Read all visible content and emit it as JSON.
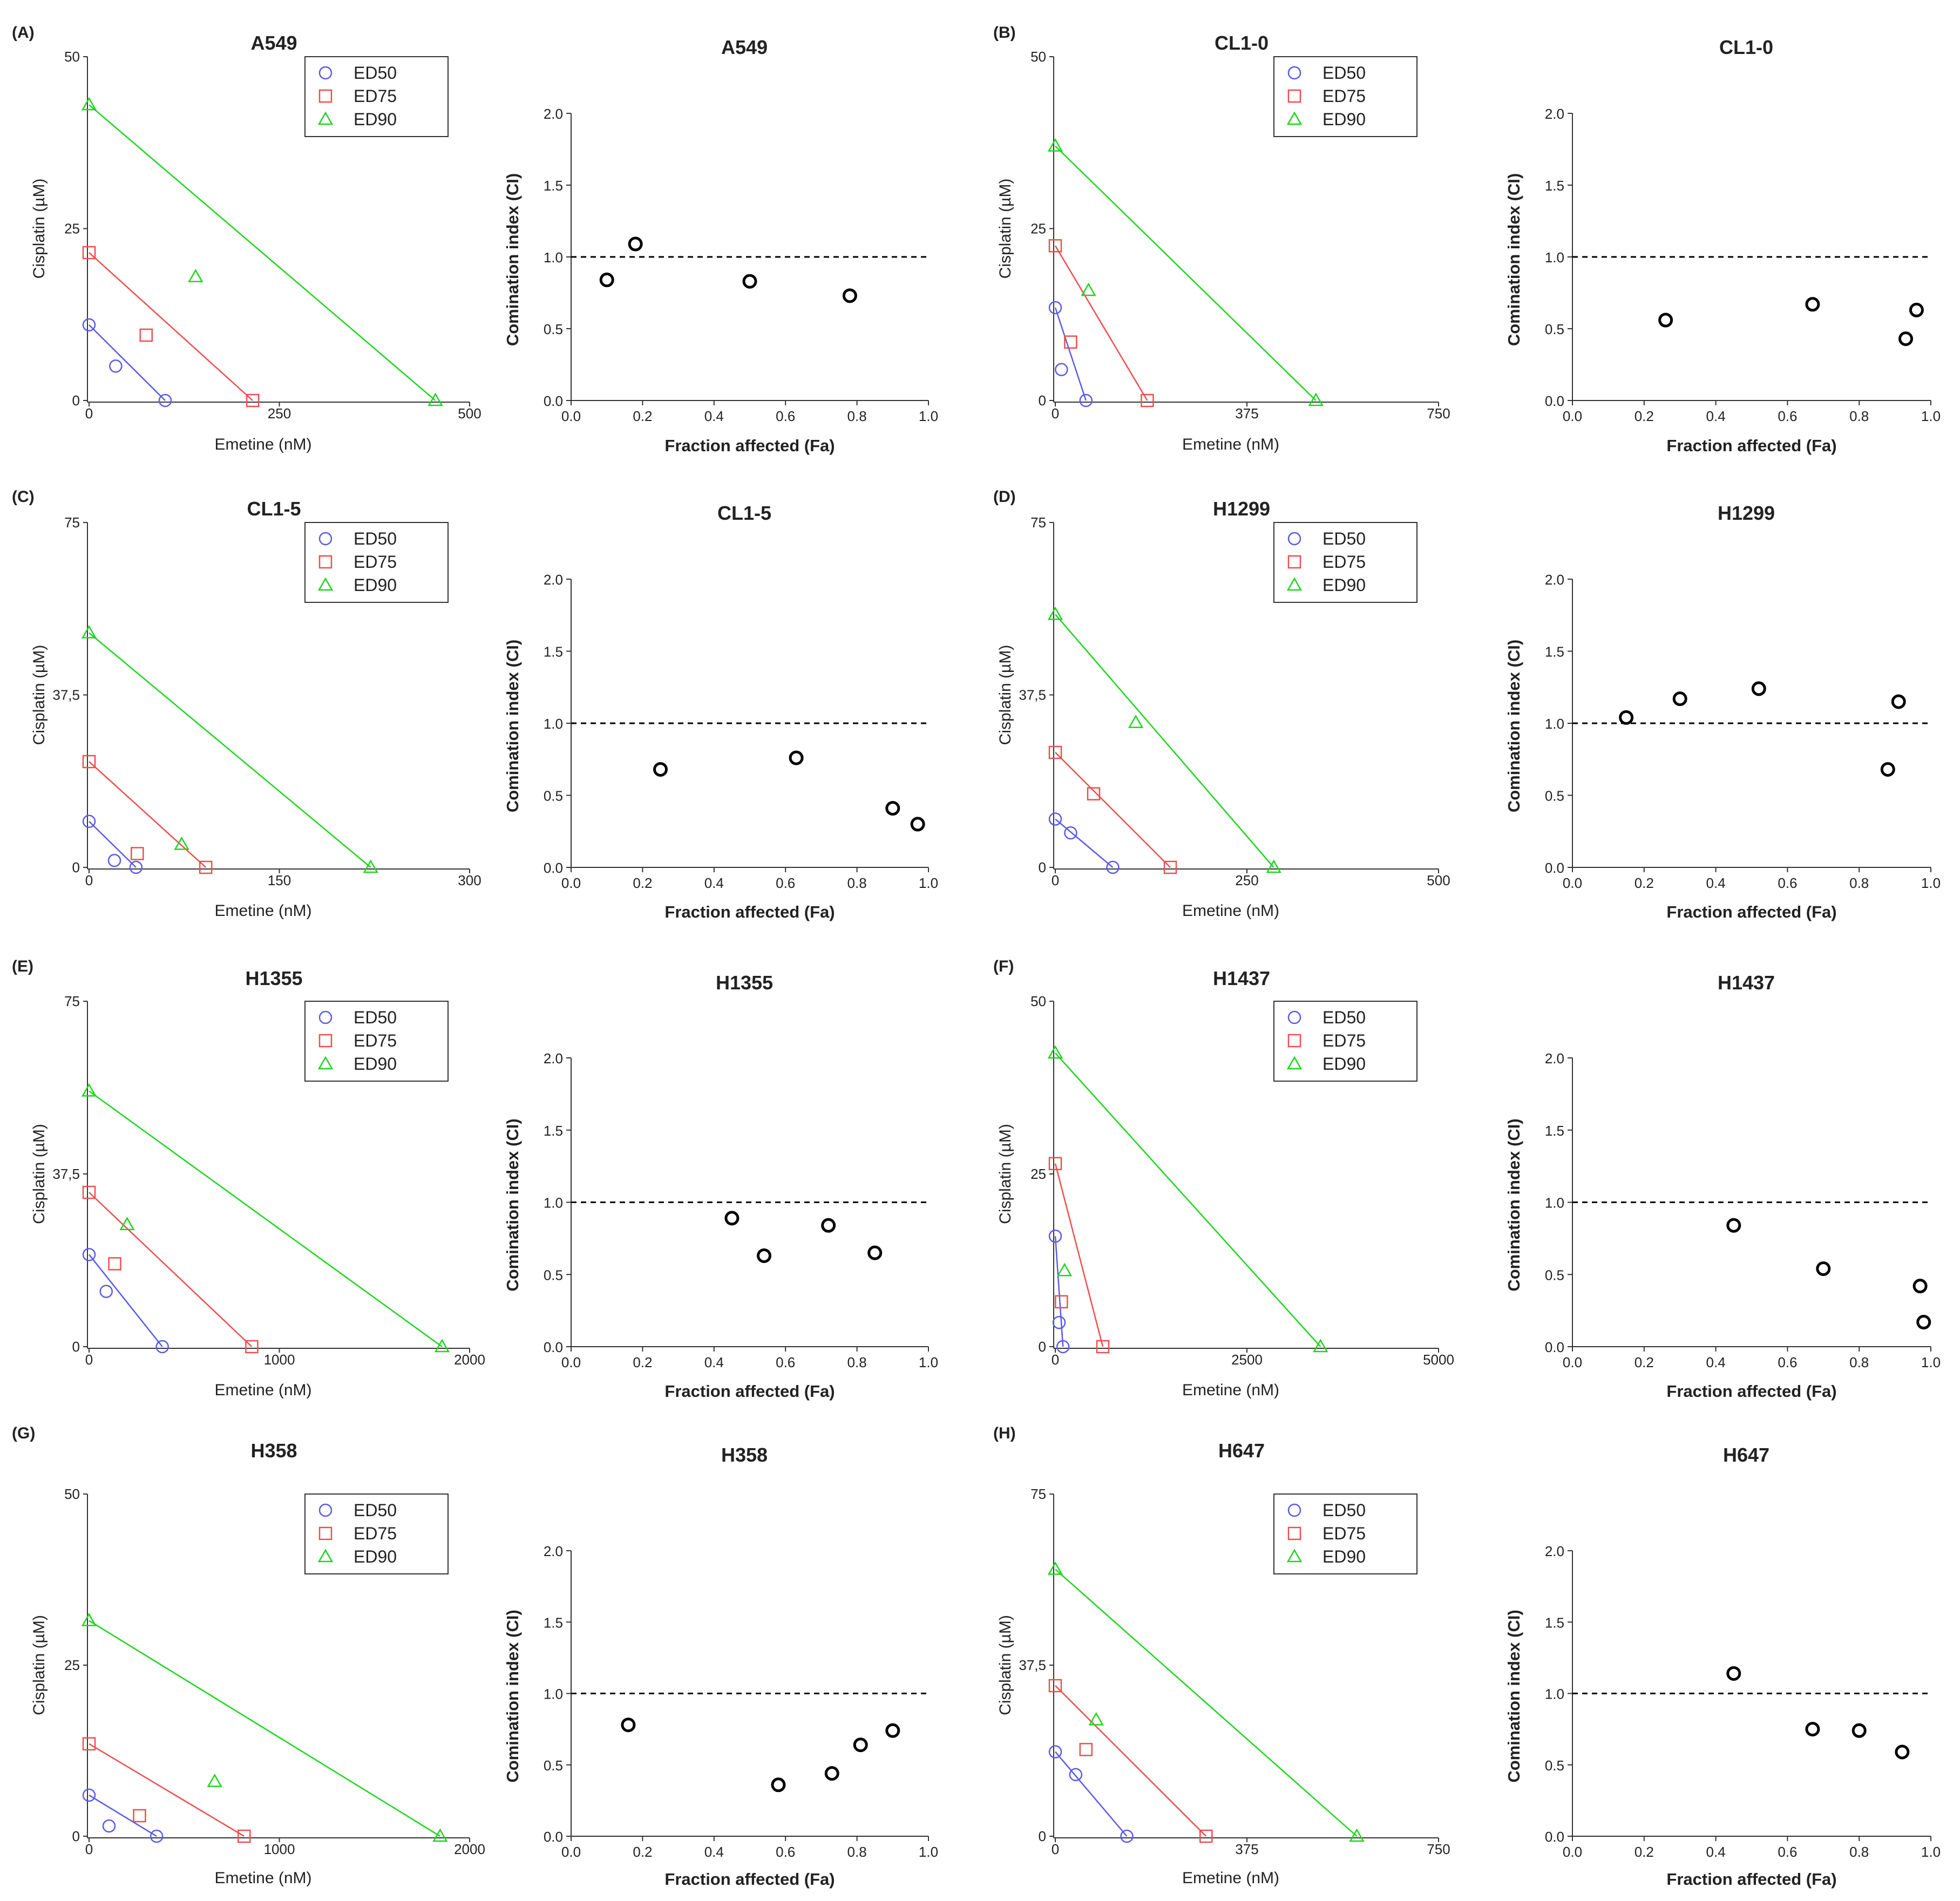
{
  "figure": {
    "background": "#ffffff"
  },
  "colors": {
    "ed50": "#5a5ae6",
    "ed75": "#ee4d4d",
    "ed90": "#1ed41e",
    "ci": "#000000",
    "axis": "#333333"
  },
  "legend_labels": [
    "ED50",
    "ED75",
    "ED90"
  ],
  "chart_data": [
    {
      "panel": "(A)",
      "type": "scatter",
      "kind": "isobologram",
      "title": "A549",
      "xlabel": "Emetine (nM)",
      "ylabel": "Cisplatin (µM)",
      "xlim": [
        0,
        500
      ],
      "ylim": [
        0,
        50
      ],
      "xticks": [
        0,
        250,
        500
      ],
      "xtick_labels": [
        "0",
        "250",
        "500"
      ],
      "yticks": [
        0,
        25,
        50
      ],
      "ytick_labels": [
        "0",
        "25",
        "50"
      ],
      "legend": "top-right",
      "series": [
        {
          "name": "ED50",
          "marker": "circle",
          "intercept_y": 11,
          "intercept_x": 100,
          "points": [
            [
              35,
              5
            ]
          ]
        },
        {
          "name": "ED75",
          "marker": "square",
          "intercept_y": 21.5,
          "intercept_x": 215,
          "points": [
            [
              75,
              9.5
            ]
          ]
        },
        {
          "name": "ED90",
          "marker": "triangle",
          "intercept_y": 43,
          "intercept_x": 455,
          "points": [
            [
              140,
              18
            ]
          ]
        }
      ]
    },
    {
      "panel": "",
      "type": "scatter",
      "kind": "ci",
      "title": "A549",
      "xlabel": "Fraction affected (Fa)",
      "ylabel": "Comination index (CI)",
      "xlim": [
        0,
        1
      ],
      "ylim": [
        0,
        2
      ],
      "xticks": [
        0,
        0.2,
        0.4,
        0.6,
        0.8,
        1.0
      ],
      "xtick_labels": [
        "0.0",
        "0.2",
        "0.4",
        "0.6",
        "0.8",
        "1.0"
      ],
      "yticks": [
        0,
        0.5,
        1.0,
        1.5,
        2.0
      ],
      "ytick_labels": [
        "0.0",
        "0.5",
        "1.0",
        "1.5",
        "2.0"
      ],
      "reference_line": 1.0,
      "x": [
        0.1,
        0.18,
        0.5,
        0.78
      ],
      "y": [
        0.84,
        1.09,
        0.83,
        0.73
      ]
    },
    {
      "panel": "(B)",
      "type": "scatter",
      "kind": "isobologram",
      "title": "CL1-0",
      "xlabel": "Emetine (nM)",
      "ylabel": "Cisplatin (µM)",
      "xlim": [
        0,
        750
      ],
      "ylim": [
        0,
        50
      ],
      "xticks": [
        0,
        375,
        750
      ],
      "xtick_labels": [
        "0",
        "375",
        "750"
      ],
      "yticks": [
        0,
        25,
        50
      ],
      "ytick_labels": [
        "0",
        "25",
        "50"
      ],
      "legend": "top-right",
      "series": [
        {
          "name": "ED50",
          "marker": "circle",
          "intercept_y": 13.5,
          "intercept_x": 60,
          "points": [
            [
              12,
              4.5
            ]
          ]
        },
        {
          "name": "ED75",
          "marker": "square",
          "intercept_y": 22.5,
          "intercept_x": 180,
          "points": [
            [
              30,
              8.5
            ]
          ]
        },
        {
          "name": "ED90",
          "marker": "triangle",
          "intercept_y": 37,
          "intercept_x": 510,
          "points": [
            [
              65,
              16
            ]
          ]
        }
      ]
    },
    {
      "panel": "",
      "type": "scatter",
      "kind": "ci",
      "title": "CL1-0",
      "xlabel": "Fraction affected (Fa)",
      "ylabel": "Comination index (CI)",
      "xlim": [
        0,
        1
      ],
      "ylim": [
        0,
        2
      ],
      "xticks": [
        0,
        0.2,
        0.4,
        0.6,
        0.8,
        1.0
      ],
      "xtick_labels": [
        "0.0",
        "0.2",
        "0.4",
        "0.6",
        "0.8",
        "1.0"
      ],
      "yticks": [
        0,
        0.5,
        1.0,
        1.5,
        2.0
      ],
      "ytick_labels": [
        "0.0",
        "0.5",
        "1.0",
        "1.5",
        "2.0"
      ],
      "reference_line": 1.0,
      "x": [
        0.26,
        0.67,
        0.93,
        0.96
      ],
      "y": [
        0.56,
        0.67,
        0.43,
        0.63
      ]
    },
    {
      "panel": "(C)",
      "type": "scatter",
      "kind": "isobologram",
      "title": "CL1-5",
      "xlabel": "Emetine (nM)",
      "ylabel": "Cisplatin (µM)",
      "xlim": [
        0,
        300
      ],
      "ylim": [
        0,
        75
      ],
      "xticks": [
        0,
        150,
        300
      ],
      "xtick_labels": [
        "0",
        "150",
        "300"
      ],
      "yticks": [
        0,
        37.5,
        75
      ],
      "ytick_labels": [
        "0",
        "37,5",
        "75"
      ],
      "legend": "top-right",
      "series": [
        {
          "name": "ED50",
          "marker": "circle",
          "intercept_y": 10,
          "intercept_x": 37,
          "points": [
            [
              20,
              1.5
            ]
          ]
        },
        {
          "name": "ED75",
          "marker": "square",
          "intercept_y": 23,
          "intercept_x": 92,
          "points": [
            [
              38,
              3
            ]
          ]
        },
        {
          "name": "ED90",
          "marker": "triangle",
          "intercept_y": 51,
          "intercept_x": 222,
          "points": [
            [
              73,
              5
            ]
          ]
        }
      ]
    },
    {
      "panel": "",
      "type": "scatter",
      "kind": "ci",
      "title": "CL1-5",
      "xlabel": "Fraction affected (Fa)",
      "ylabel": "Comination index (CI)",
      "xlim": [
        0,
        1
      ],
      "ylim": [
        0,
        2
      ],
      "xticks": [
        0,
        0.2,
        0.4,
        0.6,
        0.8,
        1.0
      ],
      "xtick_labels": [
        "0.0",
        "0.2",
        "0.4",
        "0.6",
        "0.8",
        "1.0"
      ],
      "yticks": [
        0,
        0.5,
        1.0,
        1.5,
        2.0
      ],
      "ytick_labels": [
        "0.0",
        "0.5",
        "1.0",
        "1.5",
        "2.0"
      ],
      "reference_line": 1.0,
      "x": [
        0.25,
        0.63,
        0.9,
        0.97
      ],
      "y": [
        0.68,
        0.76,
        0.41,
        0.3
      ]
    },
    {
      "panel": "(D)",
      "type": "scatter",
      "kind": "isobologram",
      "title": "H1299",
      "xlabel": "Emetine (nM)",
      "ylabel": "Cisplatin (µM)",
      "xlim": [
        0,
        500
      ],
      "ylim": [
        0,
        75
      ],
      "xticks": [
        0,
        250,
        500
      ],
      "xtick_labels": [
        "0",
        "250",
        "500"
      ],
      "yticks": [
        0,
        37.5,
        75
      ],
      "ytick_labels": [
        "0",
        "37,5",
        "75"
      ],
      "legend": "top-right",
      "series": [
        {
          "name": "ED50",
          "marker": "circle",
          "intercept_y": 10.5,
          "intercept_x": 75,
          "points": [
            [
              20,
              7.5
            ]
          ]
        },
        {
          "name": "ED75",
          "marker": "square",
          "intercept_y": 25,
          "intercept_x": 150,
          "points": [
            [
              50,
              16
            ]
          ]
        },
        {
          "name": "ED90",
          "marker": "triangle",
          "intercept_y": 55,
          "intercept_x": 285,
          "points": [
            [
              105,
              31.5
            ]
          ]
        }
      ]
    },
    {
      "panel": "",
      "type": "scatter",
      "kind": "ci",
      "title": "H1299",
      "xlabel": "Fraction affected (Fa)",
      "ylabel": "Comination index (CI)",
      "xlim": [
        0,
        1
      ],
      "ylim": [
        0,
        2
      ],
      "xticks": [
        0,
        0.2,
        0.4,
        0.6,
        0.8,
        1.0
      ],
      "xtick_labels": [
        "0.0",
        "0.2",
        "0.4",
        "0.6",
        "0.8",
        "1.0"
      ],
      "yticks": [
        0,
        0.5,
        1.0,
        1.5,
        2.0
      ],
      "ytick_labels": [
        "0.0",
        "0.5",
        "1.0",
        "1.5",
        "2.0"
      ],
      "reference_line": 1.0,
      "x": [
        0.15,
        0.3,
        0.52,
        0.88,
        0.91
      ],
      "y": [
        1.04,
        1.17,
        1.24,
        0.68,
        1.15
      ]
    },
    {
      "panel": "(E)",
      "type": "scatter",
      "kind": "isobologram",
      "title": "H1355",
      "xlabel": "Emetine (nM)",
      "ylabel": "Cisplatin (µM)",
      "xlim": [
        0,
        2000
      ],
      "ylim": [
        0,
        75
      ],
      "xticks": [
        0,
        1000,
        2000
      ],
      "xtick_labels": [
        "0",
        "1000",
        "2000"
      ],
      "yticks": [
        0,
        37.5,
        75
      ],
      "ytick_labels": [
        "0",
        "37,5",
        "75"
      ],
      "legend": "top-right",
      "series": [
        {
          "name": "ED50",
          "marker": "circle",
          "intercept_y": 20,
          "intercept_x": 385,
          "points": [
            [
              90,
              12
            ]
          ]
        },
        {
          "name": "ED75",
          "marker": "square",
          "intercept_y": 33.5,
          "intercept_x": 855,
          "points": [
            [
              135,
              18
            ]
          ]
        },
        {
          "name": "ED90",
          "marker": "triangle",
          "intercept_y": 55.5,
          "intercept_x": 1855,
          "points": [
            [
              200,
              26.5
            ]
          ]
        }
      ]
    },
    {
      "panel": "",
      "type": "scatter",
      "kind": "ci",
      "title": "H1355",
      "xlabel": "Fraction affected (Fa)",
      "ylabel": "Comination index (CI)",
      "xlim": [
        0,
        1
      ],
      "ylim": [
        0,
        2
      ],
      "xticks": [
        0,
        0.2,
        0.4,
        0.6,
        0.8,
        1.0
      ],
      "xtick_labels": [
        "0.0",
        "0.2",
        "0.4",
        "0.6",
        "0.8",
        "1.0"
      ],
      "yticks": [
        0,
        0.5,
        1.0,
        1.5,
        2.0
      ],
      "ytick_labels": [
        "0.0",
        "0.5",
        "1.0",
        "1.5",
        "2.0"
      ],
      "reference_line": 1.0,
      "x": [
        0.45,
        0.54,
        0.72,
        0.85
      ],
      "y": [
        0.89,
        0.63,
        0.84,
        0.65
      ]
    },
    {
      "panel": "(F)",
      "type": "scatter",
      "kind": "isobologram",
      "title": "H1437",
      "xlabel": "Emetine (nM)",
      "ylabel": "Cisplatin (µM)",
      "xlim": [
        0,
        5000
      ],
      "ylim": [
        0,
        50
      ],
      "xticks": [
        0,
        2500,
        5000
      ],
      "xtick_labels": [
        "0",
        "2500",
        "5000"
      ],
      "yticks": [
        0,
        25,
        50
      ],
      "ytick_labels": [
        "0",
        "25",
        "50"
      ],
      "legend": "top-right",
      "series": [
        {
          "name": "ED50",
          "marker": "circle",
          "intercept_y": 16,
          "intercept_x": 100,
          "points": [
            [
              50,
              3.5
            ]
          ]
        },
        {
          "name": "ED75",
          "marker": "square",
          "intercept_y": 26.5,
          "intercept_x": 620,
          "points": [
            [
              80,
              6.5
            ]
          ]
        },
        {
          "name": "ED90",
          "marker": "triangle",
          "intercept_y": 42.5,
          "intercept_x": 3460,
          "points": [
            [
              120,
              11
            ]
          ]
        }
      ]
    },
    {
      "panel": "",
      "type": "scatter",
      "kind": "ci",
      "title": "H1437",
      "xlabel": "Fraction affected (Fa)",
      "ylabel": "Comination index (CI)",
      "xlim": [
        0,
        1
      ],
      "ylim": [
        0,
        2
      ],
      "xticks": [
        0,
        0.2,
        0.4,
        0.6,
        0.8,
        1.0
      ],
      "xtick_labels": [
        "0.0",
        "0.2",
        "0.4",
        "0.6",
        "0.8",
        "1.0"
      ],
      "yticks": [
        0,
        0.5,
        1.0,
        1.5,
        2.0
      ],
      "ytick_labels": [
        "0.0",
        "0.5",
        "1.0",
        "1.5",
        "2.0"
      ],
      "reference_line": 1.0,
      "x": [
        0.45,
        0.7,
        0.97,
        0.98
      ],
      "y": [
        0.84,
        0.54,
        0.42,
        0.17
      ]
    },
    {
      "panel": "(G)",
      "type": "scatter",
      "kind": "isobologram",
      "title": "H358",
      "xlabel": "Emetine (nM)",
      "ylabel": "Cisplatin (µM)",
      "xlim": [
        0,
        2000
      ],
      "ylim": [
        0,
        50
      ],
      "xticks": [
        0,
        1000,
        2000
      ],
      "xtick_labels": [
        "0",
        "1000",
        "2000"
      ],
      "yticks": [
        0,
        25,
        50
      ],
      "ytick_labels": [
        "0",
        "25",
        "50"
      ],
      "legend": "top-right",
      "series": [
        {
          "name": "ED50",
          "marker": "circle",
          "intercept_y": 6,
          "intercept_x": 355,
          "points": [
            [
              105,
              1.5
            ]
          ]
        },
        {
          "name": "ED75",
          "marker": "square",
          "intercept_y": 13.5,
          "intercept_x": 815,
          "points": [
            [
              265,
              3
            ]
          ]
        },
        {
          "name": "ED90",
          "marker": "triangle",
          "intercept_y": 31.5,
          "intercept_x": 1845,
          "points": [
            [
              660,
              8
            ]
          ]
        }
      ]
    },
    {
      "panel": "",
      "type": "scatter",
      "kind": "ci",
      "title": "H358",
      "xlabel": "Fraction affected (Fa)",
      "ylabel": "Comination index (CI)",
      "xlim": [
        0,
        1
      ],
      "ylim": [
        0,
        2
      ],
      "xticks": [
        0,
        0.2,
        0.4,
        0.6,
        0.8,
        1.0
      ],
      "xtick_labels": [
        "0.0",
        "0.2",
        "0.4",
        "0.6",
        "0.8",
        "1.0"
      ],
      "yticks": [
        0,
        0.5,
        1.0,
        1.5,
        2.0
      ],
      "ytick_labels": [
        "0.0",
        "0.5",
        "1.0",
        "1.5",
        "2.0"
      ],
      "reference_line": 1.0,
      "x": [
        0.16,
        0.58,
        0.73,
        0.81,
        0.9
      ],
      "y": [
        0.78,
        0.36,
        0.44,
        0.64,
        0.74
      ]
    },
    {
      "panel": "(H)",
      "type": "scatter",
      "kind": "isobologram",
      "title": "H647",
      "xlabel": "Emetine (nM)",
      "ylabel": "Cisplatin (µM)",
      "xlim": [
        0,
        750
      ],
      "ylim": [
        0,
        75
      ],
      "xticks": [
        0,
        375,
        750
      ],
      "xtick_labels": [
        "0",
        "375",
        "750"
      ],
      "yticks": [
        0,
        37.5,
        75
      ],
      "ytick_labels": [
        "0",
        "37,5",
        "75"
      ],
      "legend": "top-right",
      "series": [
        {
          "name": "ED50",
          "marker": "circle",
          "intercept_y": 18.5,
          "intercept_x": 140,
          "points": [
            [
              40,
              13.5
            ]
          ]
        },
        {
          "name": "ED75",
          "marker": "square",
          "intercept_y": 33,
          "intercept_x": 295,
          "points": [
            [
              60,
              19
            ]
          ]
        },
        {
          "name": "ED90",
          "marker": "triangle",
          "intercept_y": 58.5,
          "intercept_x": 590,
          "points": [
            [
              80,
              25.5
            ]
          ]
        }
      ]
    },
    {
      "panel": "",
      "type": "scatter",
      "kind": "ci",
      "title": "H647",
      "xlabel": "Fraction affected (Fa)",
      "ylabel": "Comination index (CI)",
      "xlim": [
        0,
        1
      ],
      "ylim": [
        0,
        2
      ],
      "xticks": [
        0,
        0.2,
        0.4,
        0.6,
        0.8,
        1.0
      ],
      "xtick_labels": [
        "0.0",
        "0.2",
        "0.4",
        "0.6",
        "0.8",
        "1.0"
      ],
      "yticks": [
        0,
        0.5,
        1.0,
        1.5,
        2.0
      ],
      "ytick_labels": [
        "0.0",
        "0.5",
        "1.0",
        "1.5",
        "2.0"
      ],
      "reference_line": 1.0,
      "x": [
        0.45,
        0.67,
        0.8,
        0.92
      ],
      "y": [
        1.14,
        0.75,
        0.74,
        0.59
      ]
    }
  ]
}
